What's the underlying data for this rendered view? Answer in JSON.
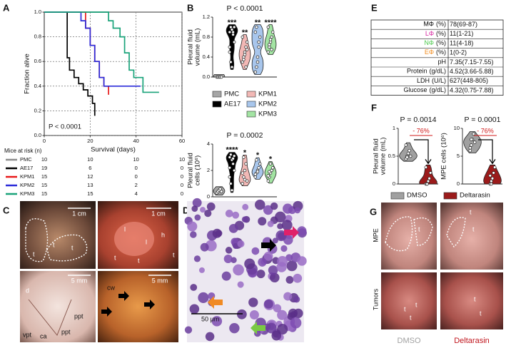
{
  "panel_labels": [
    "A",
    "B",
    "C",
    "D",
    "E",
    "F",
    "G"
  ],
  "chart_data": [
    {
      "type": "line",
      "drawstyle": "steps",
      "ylabel": "Fraction alive",
      "xlabel": "Survival (days)",
      "annotation": "P < 0.0001",
      "xlim": [
        0,
        60
      ],
      "xticks": [
        0,
        20,
        40,
        60
      ],
      "ylim": [
        0,
        1
      ],
      "yticks": [
        {
          "value": 0,
          "label": "0.0"
        },
        0.2,
        0.4,
        0.6,
        0.8,
        {
          "value": 1,
          "label": "1.0"
        }
      ],
      "grid": true,
      "series": [
        {
          "name": "PMC",
          "color": "#8c8c8c",
          "x": [
            0,
            60
          ],
          "values": [
            1,
            1
          ]
        },
        {
          "name": "AE17",
          "color": "#000000",
          "x": [
            0,
            10,
            11,
            13,
            15,
            17,
            19,
            21,
            22
          ],
          "values": [
            1,
            0.63,
            0.53,
            0.47,
            0.42,
            0.37,
            0.32,
            0.26,
            0.16
          ]
        },
        {
          "name": "KPM1",
          "color": "#e8191a",
          "x": [
            0,
            18,
            20,
            22,
            24,
            26,
            28
          ],
          "values": [
            1,
            0.87,
            0.73,
            0.6,
            0.47,
            0.4,
            0.33
          ]
        },
        {
          "name": "KPM2",
          "color": "#2b2bd9",
          "x": [
            0,
            16,
            18,
            20,
            22,
            24,
            26,
            42
          ],
          "values": [
            1,
            0.93,
            0.87,
            0.73,
            0.6,
            0.47,
            0.4,
            0.4
          ]
        },
        {
          "name": "KPM3",
          "color": "#1aa37a",
          "x": [
            0,
            28,
            30,
            33,
            35,
            37,
            39,
            43,
            50
          ],
          "values": [
            1,
            0.93,
            0.87,
            0.8,
            0.67,
            0.53,
            0.47,
            0.35,
            0.35
          ]
        }
      ]
    },
    {
      "type": "violin",
      "pvalue": "P < 0.0001",
      "ylabel": [
        "Pleural fluid",
        "volume (mL)"
      ],
      "ylim": [
        0,
        1.2
      ],
      "yticks": [
        {
          "value": 0,
          "label": "0.0"
        },
        0.4,
        0.8,
        1.2
      ],
      "series": [
        {
          "name": "PMC",
          "color": "#a6a6a6",
          "values": [
            0,
            0,
            0,
            0,
            0
          ]
        },
        {
          "name": "AE17",
          "color": "#000000",
          "significance": "***",
          "values": [
            0.9,
            1.0,
            0.95,
            0.85,
            0.7,
            0.5,
            0.3,
            0.2,
            0.9,
            1.0,
            0.6
          ]
        },
        {
          "name": "KPM1",
          "color": "#f2b8b5",
          "significance": "**",
          "values": [
            0.3,
            0.4,
            0.5,
            0.6,
            0.7,
            0.8,
            0.35,
            0.45,
            0.2,
            0.55
          ]
        },
        {
          "name": "KPM2",
          "color": "#a8c6ec",
          "significance": "**",
          "values": [
            0.1,
            0.2,
            0.4,
            0.6,
            0.8,
            0.9,
            1.0,
            0.3,
            0.7
          ]
        },
        {
          "name": "KPM3",
          "color": "#a3e4a3",
          "significance": "****",
          "values": [
            0.5,
            0.6,
            0.7,
            0.8,
            0.9,
            1.0,
            0.65,
            0.75,
            0.55
          ]
        }
      ]
    },
    {
      "type": "violin",
      "pvalue": "P = 0.0002",
      "ylabel": [
        "Pleural fluid",
        "cells (10⁶)"
      ],
      "ylim": [
        0,
        4
      ],
      "yticks": [
        0,
        2,
        4
      ],
      "series": [
        {
          "color": "#a6a6a6",
          "values": [
            0.3,
            0.4,
            0.5,
            0.6,
            0.4
          ]
        },
        {
          "color": "#000000",
          "significance": "****",
          "values": [
            3.0,
            3.2,
            2.8,
            2.5,
            2.0,
            1.5,
            1.0,
            0.5,
            2.9,
            3.1,
            2.2
          ]
        },
        {
          "color": "#f2b8b5",
          "significance": "*",
          "values": [
            1.0,
            1.5,
            2.0,
            2.5,
            1.2,
            1.8,
            3.0,
            1.3
          ]
        },
        {
          "color": "#a8c6ec",
          "significance": "*",
          "values": [
            1.5,
            1.8,
            2.0,
            2.2,
            2.5,
            1.7,
            2.8,
            1.9
          ]
        },
        {
          "color": "#a3e4a3",
          "significance": "*",
          "values": [
            1.2,
            1.5,
            1.8,
            2.0,
            2.2,
            1.6,
            1.9,
            2.5
          ]
        }
      ]
    },
    {
      "type": "violin",
      "pvalue": "P = 0.0014",
      "change_label": "- 76%",
      "ylabel": [
        "Pleural fluid",
        "volume (mL)"
      ],
      "ylim": [
        0,
        1
      ],
      "yticks": [
        0,
        0.5,
        1
      ],
      "series": [
        {
          "name": "DMSO",
          "color": "#a0a0a0",
          "values": [
            0.45,
            0.5,
            0.55,
            0.6,
            0.5,
            0.7,
            0.48
          ]
        },
        {
          "name": "Deltarasin",
          "color": "#9b1b1b",
          "values": [
            0,
            0,
            0.05,
            0.1,
            0.2,
            0.3,
            0
          ]
        }
      ]
    },
    {
      "type": "violin",
      "pvalue": "P = 0.0001",
      "change_label": "- 76%",
      "ylabel": [
        "MPE cells (10⁶)"
      ],
      "ylim": [
        0,
        10
      ],
      "yticks": [
        0,
        5,
        10
      ],
      "series": [
        {
          "color": "#a0a0a0",
          "values": [
            6,
            7,
            8,
            9,
            7.5,
            6.5,
            8
          ]
        },
        {
          "color": "#9b1b1b",
          "values": [
            0,
            0.5,
            1,
            2,
            3,
            1.5,
            0
          ]
        }
      ]
    }
  ],
  "risk_table": {
    "title": "Mice at risk (n)",
    "counts": [
      [
        10,
        10,
        10,
        10
      ],
      [
        19,
        6,
        0,
        0
      ],
      [
        15,
        12,
        0,
        0
      ],
      [
        15,
        13,
        2,
        0
      ],
      [
        15,
        15,
        4,
        0
      ]
    ]
  },
  "table_E": {
    "rows": [
      {
        "name": "MΦ",
        "color": "#000000",
        "unit": "(%)",
        "value": "78(69-87)"
      },
      {
        "name": "LΦ",
        "color": "#d6249f",
        "unit": "(%)",
        "value": "11(1-21)"
      },
      {
        "name": "NΦ",
        "color": "#4cc94c",
        "unit": "(%)",
        "value": "11(4-18)"
      },
      {
        "name": "EΦ",
        "color": "#f28c1e",
        "unit": "(%)",
        "value": "1(0-2)"
      },
      {
        "name": "pH",
        "value": "7.35(7.15-7.55)"
      },
      {
        "name": "Protein",
        "unit": "(g/dL)",
        "value": "4.52(3.66-5.88)"
      },
      {
        "name": "LDH",
        "unit": "(U/L)",
        "value": "627(448-805)"
      },
      {
        "name": "Glucose",
        "unit": "(g/dL)",
        "value": "4.32(0.75-7.88)"
      }
    ]
  },
  "panel_C": {
    "labels": [
      "1 cm",
      "t",
      "t",
      "t",
      "1 cm",
      "l",
      "l",
      "t",
      "t",
      "t",
      "h",
      "5 mm",
      "d",
      "ppt",
      "ppt",
      "vpt",
      "ca",
      "5 mm",
      "cw"
    ]
  },
  "panel_D": {
    "scale_bar": "50 μm"
  },
  "panel_G": {
    "row_labels": [
      "MPE",
      "Tumors"
    ],
    "labels": [
      "t",
      "t",
      "t",
      "t",
      "t",
      "t",
      "t",
      "t"
    ],
    "column_labels": [
      "DMSO",
      "Deltarasin"
    ]
  }
}
